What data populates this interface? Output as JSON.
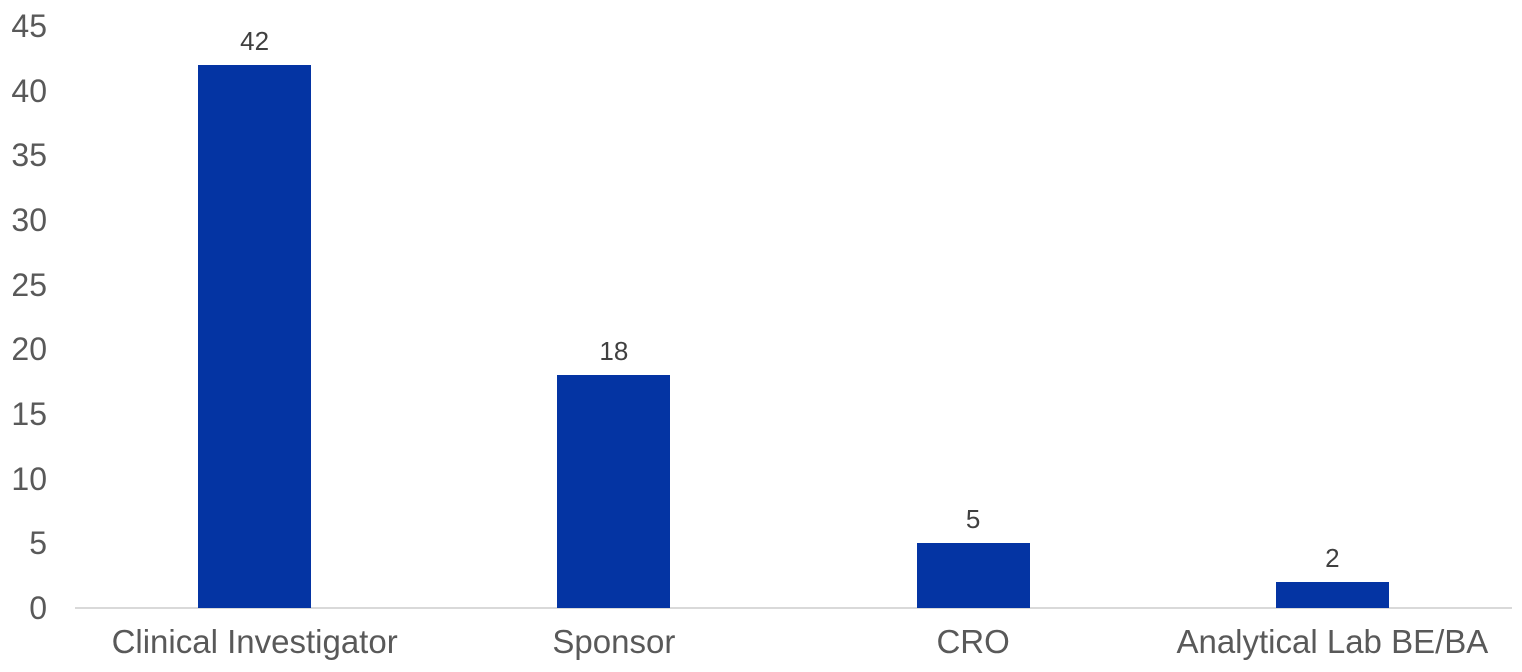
{
  "chart_data": {
    "type": "bar",
    "categories": [
      "Clinical Investigator",
      "Sponsor",
      "CRO",
      "Analytical Lab BE/BA"
    ],
    "values": [
      42,
      18,
      5,
      2
    ],
    "data_labels": [
      "42",
      "18",
      "5",
      "2"
    ],
    "title": "",
    "xlabel": "",
    "ylabel": "",
    "ylim": [
      0,
      45
    ],
    "yticks": [
      0,
      5,
      10,
      15,
      20,
      25,
      30,
      35,
      40,
      45
    ],
    "grid": false,
    "legend": false,
    "bar_color": "#0434A3",
    "axis_line_color": "#D9D9D9",
    "tick_label_color": "#595959",
    "category_label_color": "#595959",
    "data_label_color": "#404040",
    "background_color": "#FFFFFF"
  }
}
